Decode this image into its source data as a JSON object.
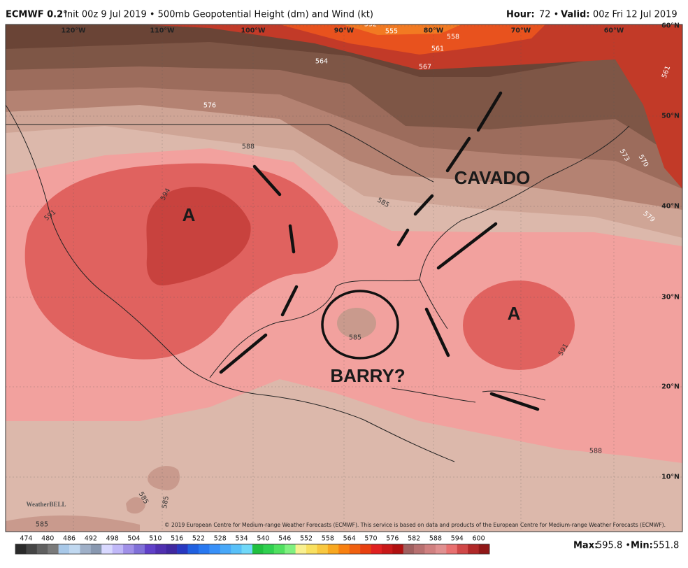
{
  "header": {
    "model": "ECMWF 0.2°",
    "description": "Init 00z 9 Jul 2019 • 500mb Geopotential Height (dm) and Wind (kt)",
    "hour_label": "Hour:",
    "hour": "72 •",
    "valid_label": "Valid:",
    "valid": "00z Fri 12 Jul 2019"
  },
  "map": {
    "longitudes": [
      "120°W",
      "110°W",
      "100°W",
      "90°W",
      "80°W",
      "70°W",
      "60°W"
    ],
    "latitudes": [
      "60°N",
      "50°N",
      "40°N",
      "30°N",
      "20°N",
      "10°N"
    ],
    "contour_labels": [
      "552",
      "555",
      "558",
      "561",
      "564",
      "567",
      "576",
      "588",
      "594",
      "591",
      "585",
      "573",
      "570",
      "561",
      "579",
      "585",
      "591",
      "588",
      "585",
      "585",
      "585"
    ],
    "annotations": [
      "A",
      "A",
      "CAVADO",
      "BARRY?"
    ],
    "logo": "WeatherBELL",
    "copyright": "© 2019 European Centre for Medium-range Weather Forecasts (ECMWF). This service is based on data and products of the European Centre for Medium-range Weather Forecasts (ECMWF)."
  },
  "colorbar": {
    "labels": [
      "474",
      "480",
      "486",
      "492",
      "498",
      "504",
      "510",
      "516",
      "522",
      "528",
      "534",
      "540",
      "546",
      "552",
      "558",
      "564",
      "570",
      "576",
      "582",
      "588",
      "594",
      "600"
    ],
    "colors": [
      "#2a2a2a",
      "#454545",
      "#606060",
      "#7a7a7a",
      "#a8c8e8",
      "#c0d8f0",
      "#9fb0c8",
      "#8898b0",
      "#d8d8ff",
      "#c0b8f8",
      "#a090e8",
      "#8070d8",
      "#6040c8",
      "#5030b0",
      "#4028a0",
      "#2838c0",
      "#2060e0",
      "#2878f0",
      "#3890f8",
      "#48a8f8",
      "#58c0f8",
      "#70d8f8",
      "#20c040",
      "#30d050",
      "#50e060",
      "#80f080",
      "#f8f090",
      "#f8e060",
      "#f8c840",
      "#f8a820",
      "#f88010",
      "#f06010",
      "#e84010",
      "#e02020",
      "#c81818",
      "#b01010",
      "#a06060",
      "#b87070",
      "#d08080",
      "#e09090",
      "#e87070",
      "#d04848",
      "#b02828",
      "#901818"
    ]
  },
  "stats": {
    "max_label": "Max:",
    "max": "595.8 •",
    "min_label": "Min:",
    "min": "551.8"
  }
}
